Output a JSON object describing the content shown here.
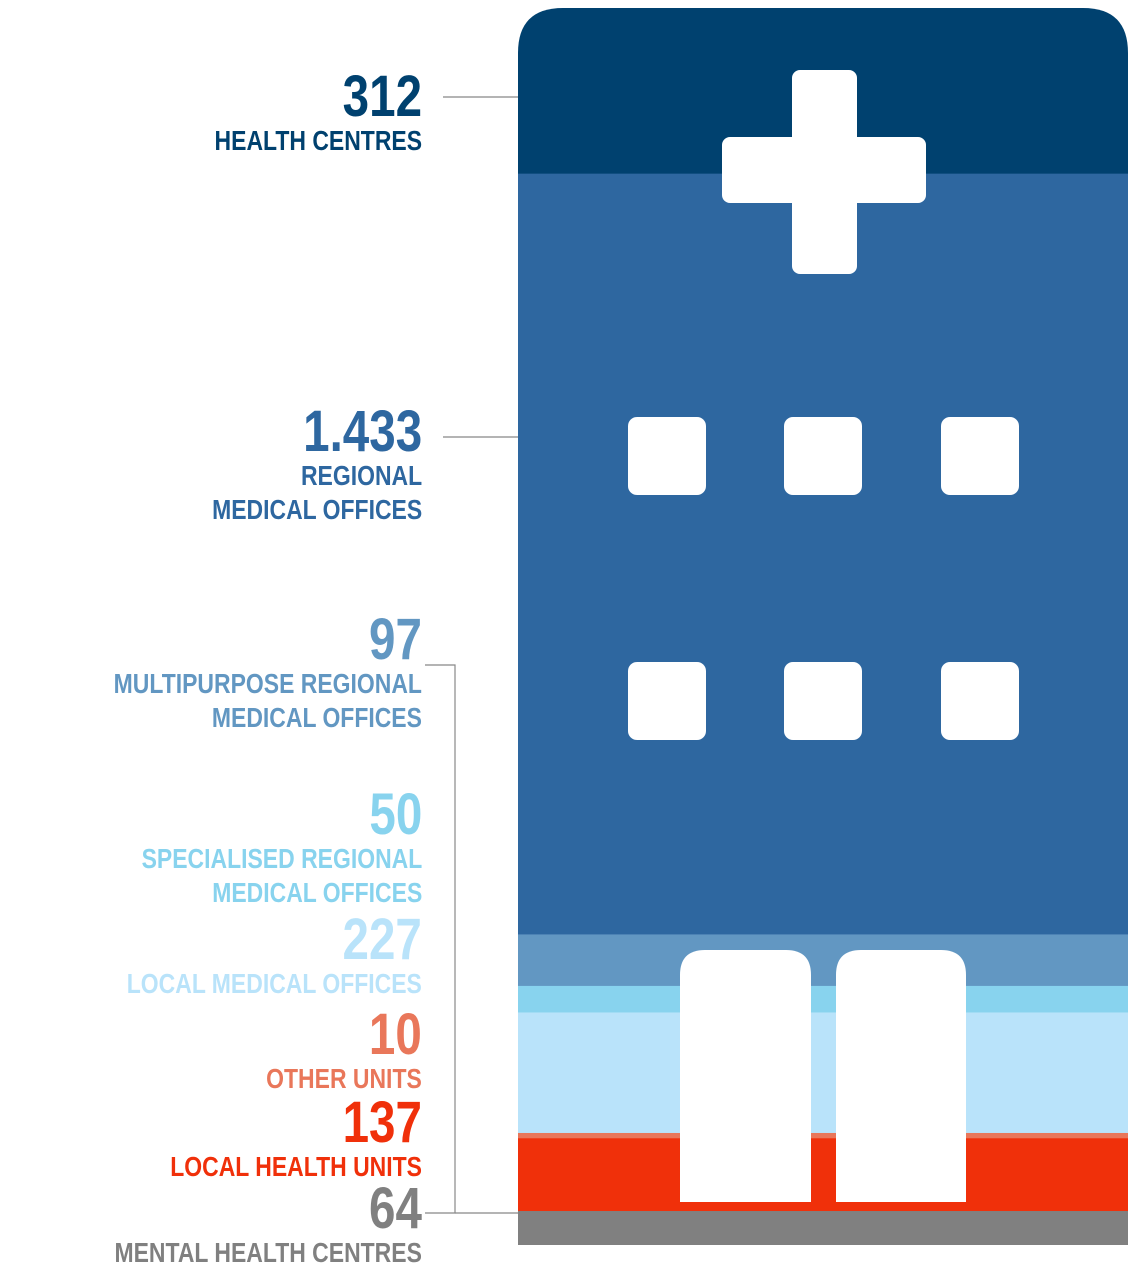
{
  "chart_data": {
    "type": "bar",
    "stacked": true,
    "series": [
      {
        "name": "HEALTH CENTRES",
        "color": "#00416f",
        "values": [
          312
        ]
      },
      {
        "name": "REGIONAL\nMEDICAL OFFICES",
        "color": "#2e67a0",
        "values": [
          1433
        ],
        "value_labels": [
          "1.433"
        ]
      },
      {
        "name": "MULTIPURPOSE REGIONAL\nMEDICAL OFFICES",
        "color": "#6297c2",
        "values": [
          97
        ]
      },
      {
        "name": "SPECIALISED REGIONAL\nMEDICAL OFFICES",
        "color": "#88d3ee",
        "values": [
          50
        ]
      },
      {
        "name": "LOCAL MEDICAL OFFICES",
        "color": "#b9e3fa",
        "values": [
          227
        ]
      },
      {
        "name": "OTHER UNITS",
        "color": "#e9775a",
        "values": [
          10
        ]
      },
      {
        "name": "LOCAL HEALTH UNITS",
        "color": "#f0300a",
        "values": [
          137
        ]
      },
      {
        "name": "MENTAL HEALTH CENTRES",
        "color": "#808080",
        "values": [
          64
        ]
      }
    ]
  }
}
